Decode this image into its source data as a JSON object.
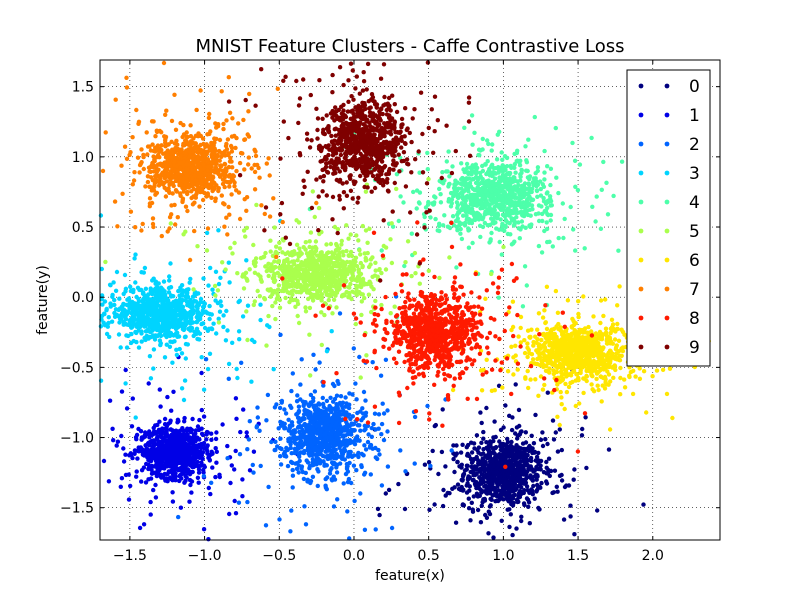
{
  "chart_data": {
    "type": "scatter",
    "title": "MNIST Feature Clusters - Caffe Contrastive Loss",
    "xlabel": "feature(x)",
    "ylabel": "feature(y)",
    "xlim": [
      -1.7,
      2.45
    ],
    "ylim": [
      -1.73,
      1.69
    ],
    "xticks": [
      -1.5,
      -1.0,
      -0.5,
      0.0,
      0.5,
      1.0,
      1.5,
      2.0
    ],
    "xtick_labels": [
      "−1.5",
      "−1.0",
      "−0.5",
      "0.0",
      "0.5",
      "1.0",
      "1.5",
      "2.0"
    ],
    "yticks": [
      -1.5,
      -1.0,
      -0.5,
      0.0,
      0.5,
      1.0,
      1.5
    ],
    "ytick_labels": [
      "−1.5",
      "−1.0",
      "−0.5",
      "0.0",
      "0.5",
      "1.0",
      "1.5"
    ],
    "grid": true,
    "legend_position": "upper-right",
    "series": [
      {
        "name": "0",
        "color": "#00007f",
        "center": [
          1.0,
          -1.25
        ],
        "spread": [
          0.13,
          0.12
        ]
      },
      {
        "name": "1",
        "color": "#0000e6",
        "center": [
          -1.2,
          -1.1
        ],
        "spread": [
          0.11,
          0.09
        ]
      },
      {
        "name": "2",
        "color": "#0064ff",
        "center": [
          -0.2,
          -0.98
        ],
        "spread": [
          0.14,
          0.13
        ]
      },
      {
        "name": "3",
        "color": "#00d4ff",
        "center": [
          -1.3,
          -0.12
        ],
        "spread": [
          0.17,
          0.09
        ]
      },
      {
        "name": "4",
        "color": "#4dffaa",
        "center": [
          0.95,
          0.72
        ],
        "spread": [
          0.18,
          0.12
        ]
      },
      {
        "name": "5",
        "color": "#aaff4d",
        "center": [
          -0.25,
          0.17
        ],
        "spread": [
          0.17,
          0.1
        ]
      },
      {
        "name": "6",
        "color": "#ffe600",
        "center": [
          1.5,
          -0.4
        ],
        "spread": [
          0.16,
          0.1
        ]
      },
      {
        "name": "7",
        "color": "#ff7f00",
        "center": [
          -1.1,
          0.93
        ],
        "spread": [
          0.14,
          0.11
        ]
      },
      {
        "name": "8",
        "color": "#ff1a00",
        "center": [
          0.55,
          -0.25
        ],
        "spread": [
          0.15,
          0.13
        ]
      },
      {
        "name": "9",
        "color": "#7f0000",
        "center": [
          0.07,
          1.1
        ],
        "spread": [
          0.14,
          0.14
        ]
      }
    ]
  }
}
